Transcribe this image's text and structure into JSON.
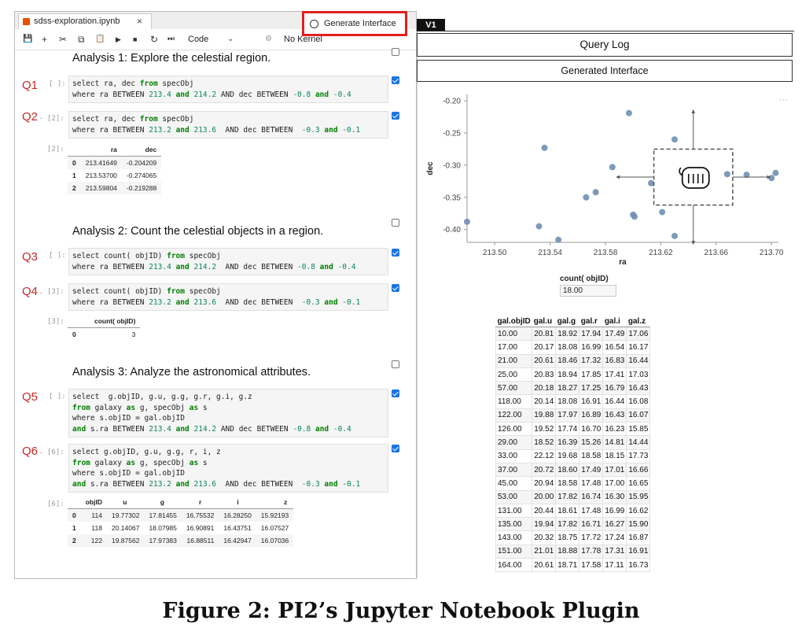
{
  "notebook": {
    "tab_name": "sdss-exploration.ipynb",
    "close_glyph": "×",
    "toolbar": {
      "save_icon": "💾",
      "add_icon": "+",
      "cut_icon": "✂",
      "copy_icon": "⧉",
      "paste_icon": "📋",
      "run_icon": "▶",
      "stop_icon": "■",
      "restart_icon": "↻",
      "fastforward_icon": "⏭",
      "cell_type": "Code",
      "cell_type_caret": "⌄",
      "kernel_status_icon": "⚙",
      "kernel": "No Kernel"
    },
    "generate_button": "Generate Interface",
    "analyses": [
      {
        "heading": "Analysis 1: Explore the celestial region."
      },
      {
        "heading": "Analysis 2: Count the celestial objects in a region."
      },
      {
        "heading": "Analysis 3: Analyze the astronomical attributes."
      }
    ],
    "queries": [
      {
        "label": "Q1",
        "prompt": "[ ]:"
      },
      {
        "label": "Q2",
        "prompt": "[2]:"
      },
      {
        "label": "Q3",
        "prompt": "[ ]:"
      },
      {
        "label": "Q4",
        "prompt": "[3]:"
      },
      {
        "label": "Q5",
        "prompt": "[ ]:"
      },
      {
        "label": "Q6",
        "prompt": "[6]:"
      }
    ],
    "outputs": {
      "out2": {
        "prompt": "[2]:",
        "columns": [
          "ra",
          "dec"
        ],
        "rows": [
          [
            "0",
            "213.41649",
            "-0.204209"
          ],
          [
            "1",
            "213.53700",
            "-0.274065"
          ],
          [
            "2",
            "213.59804",
            "-0.219288"
          ]
        ]
      },
      "out3": {
        "prompt": "[3]:",
        "columns": [
          "count( objID)"
        ],
        "rows": [
          [
            "0",
            "3"
          ]
        ]
      },
      "out6": {
        "prompt": "[6]:",
        "columns": [
          "objID",
          "u",
          "g",
          "r",
          "i",
          "z"
        ],
        "rows": [
          [
            "0",
            "114",
            "19.77302",
            "17.81455",
            "16.75532",
            "16.28250",
            "15.92193"
          ],
          [
            "1",
            "118",
            "20.14067",
            "18.07985",
            "16.90891",
            "16.43751",
            "16.07527"
          ],
          [
            "2",
            "122",
            "19.87562",
            "17.97383",
            "16.88511",
            "16.42947",
            "16.07036"
          ]
        ]
      }
    }
  },
  "interface": {
    "version_tag": "V1",
    "query_log": "Query Log",
    "generated_interface": "Generated Interface",
    "more_icon": "⋯",
    "count_header": "count( objID)",
    "count_value": "18.00",
    "table": {
      "columns": [
        "gal.objID",
        "gal.u",
        "gal.g",
        "gal.r",
        "gal.i",
        "gal.z"
      ],
      "rows": [
        [
          "10.00",
          "20.81",
          "18.92",
          "17.94",
          "17.49",
          "17.06"
        ],
        [
          "17.00",
          "20.17",
          "18.08",
          "16.99",
          "16.54",
          "16.17"
        ],
        [
          "21.00",
          "20.61",
          "18.46",
          "17.32",
          "16.83",
          "16.44"
        ],
        [
          "25.00",
          "20.83",
          "18.94",
          "17.85",
          "17.41",
          "17.03"
        ],
        [
          "57.00",
          "20.18",
          "18.27",
          "17.25",
          "16.79",
          "16.43"
        ],
        [
          "118.00",
          "20.14",
          "18.08",
          "16.91",
          "16.44",
          "16.08"
        ],
        [
          "122.00",
          "19.88",
          "17.97",
          "16.89",
          "16.43",
          "16.07"
        ],
        [
          "126.00",
          "19.52",
          "17.74",
          "16.70",
          "16.23",
          "15.85"
        ],
        [
          "29.00",
          "18.52",
          "16.39",
          "15.26",
          "14.81",
          "14.44"
        ],
        [
          "33.00",
          "22.12",
          "19.68",
          "18.58",
          "18.15",
          "17.73"
        ],
        [
          "37.00",
          "20.72",
          "18.60",
          "17.49",
          "17.01",
          "16.66"
        ],
        [
          "45.00",
          "20.94",
          "18.58",
          "17.48",
          "17.00",
          "16.65"
        ],
        [
          "53.00",
          "20.00",
          "17.82",
          "16.74",
          "16.30",
          "15.95"
        ],
        [
          "131.00",
          "20.44",
          "18.61",
          "17.48",
          "16.99",
          "16.62"
        ],
        [
          "135.00",
          "19.94",
          "17.82",
          "16.71",
          "16.27",
          "15.90"
        ],
        [
          "143.00",
          "20.32",
          "18.75",
          "17.72",
          "17.24",
          "16.87"
        ],
        [
          "151.00",
          "21.01",
          "18.88",
          "17.78",
          "17.31",
          "16.91"
        ],
        [
          "164.00",
          "20.61",
          "18.71",
          "17.58",
          "17.11",
          "16.73"
        ]
      ]
    }
  },
  "caption": "Figure 2: PI2’s Jupyter Notebook Plugin",
  "chart_data": {
    "type": "scatter",
    "xlabel": "ra",
    "ylabel": "dec",
    "xlim": [
      213.48,
      213.705
    ],
    "ylim": [
      -0.42,
      -0.19
    ],
    "xticks": [
      "213.50",
      "213.54",
      "213.58",
      "213.62",
      "213.66",
      "213.70"
    ],
    "yticks": [
      "-0.20",
      "-0.25",
      "-0.30",
      "-0.35",
      "-0.40"
    ],
    "point_color": "#6f8fb3",
    "points": [
      [
        213.48,
        -0.388
      ],
      [
        213.532,
        -0.395
      ],
      [
        213.536,
        -0.273
      ],
      [
        213.546,
        -0.416
      ],
      [
        213.566,
        -0.35
      ],
      [
        213.573,
        -0.342
      ],
      [
        213.585,
        -0.303
      ],
      [
        213.597,
        -0.219
      ],
      [
        213.6,
        -0.377
      ],
      [
        213.601,
        -0.38
      ],
      [
        213.613,
        -0.328
      ],
      [
        213.621,
        -0.373
      ],
      [
        213.63,
        -0.26
      ],
      [
        213.63,
        -0.41
      ],
      [
        213.668,
        -0.314
      ],
      [
        213.682,
        -0.315
      ],
      [
        213.7,
        -0.32
      ],
      [
        213.703,
        -0.312
      ]
    ],
    "selection_box": {
      "x": [
        213.615,
        213.672
      ],
      "y": [
        -0.362,
        -0.275
      ]
    }
  }
}
